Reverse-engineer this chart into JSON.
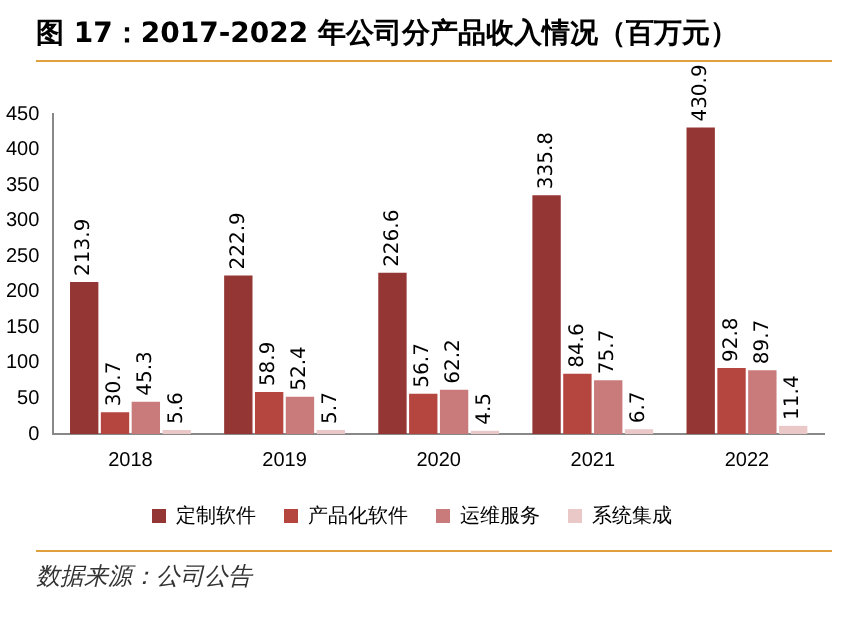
{
  "chart_data": {
    "type": "bar",
    "title": "图 17：2017-2022 年公司分产品收入情况（百万元）",
    "categories": [
      "2018",
      "2019",
      "2020",
      "2021",
      "2022"
    ],
    "series": [
      {
        "name": "定制软件",
        "color": "#943634",
        "values": [
          213.9,
          222.9,
          226.6,
          335.8,
          430.9
        ]
      },
      {
        "name": "产品化软件",
        "color": "#b5453f",
        "values": [
          30.7,
          58.9,
          56.7,
          84.6,
          92.8
        ]
      },
      {
        "name": "运维服务",
        "color": "#c97b7b",
        "values": [
          45.3,
          52.4,
          62.2,
          75.7,
          89.7
        ]
      },
      {
        "name": "系统集成",
        "color": "#ebc8c8",
        "values": [
          5.6,
          5.7,
          4.5,
          6.7,
          11.4
        ]
      }
    ],
    "ylim": [
      0,
      450
    ],
    "yticks": [
      0,
      50,
      100,
      150,
      200,
      250,
      300,
      350,
      400,
      450
    ],
    "grid": false,
    "legend": "bottom",
    "data_labels": true,
    "annotations": [
      "数据来源：公司公告"
    ]
  }
}
